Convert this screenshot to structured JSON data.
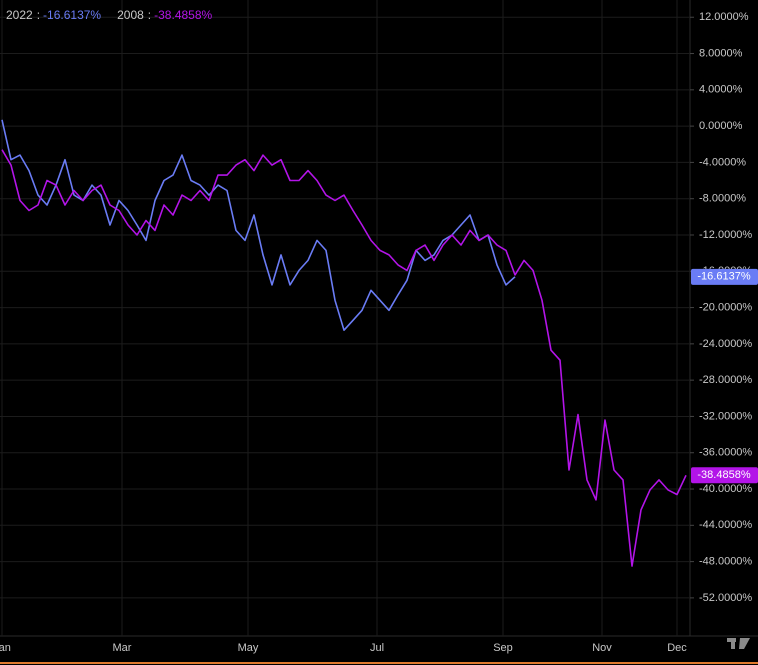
{
  "chart_data": {
    "type": "line",
    "legend_separator": ":",
    "x": [
      0,
      3,
      6,
      9,
      12,
      15,
      18,
      21,
      24,
      27,
      30,
      33,
      36,
      39,
      42,
      45,
      48,
      51,
      54,
      57,
      60,
      63,
      66,
      69,
      72,
      75,
      78,
      81,
      84,
      87,
      90,
      93,
      96,
      99,
      102,
      105,
      108,
      111,
      114,
      117,
      120,
      123,
      126,
      129,
      132,
      135,
      138,
      141,
      144,
      147,
      150,
      153,
      156,
      159,
      162,
      165,
      168,
      171,
      174,
      177,
      180,
      183,
      186,
      189,
      192,
      195,
      198,
      201,
      204,
      207,
      210,
      213,
      216,
      219,
      222,
      225,
      228
    ],
    "series": [
      {
        "name": "2022",
        "color": "#6a7cf5",
        "last_value_label": "-16.6137%",
        "values": [
          0.7,
          -3.7,
          -3.2,
          -4.9,
          -7.6,
          -8.7,
          -6.5,
          -3.7,
          -7.6,
          -8.2,
          -6.5,
          -7.6,
          -10.9,
          -8.2,
          -9.3,
          -10.9,
          -12.6,
          -8.2,
          -6.0,
          -5.4,
          -3.2,
          -6.0,
          -6.5,
          -7.6,
          -6.5,
          -7.1,
          -11.5,
          -12.6,
          -9.8,
          -14.2,
          -17.5,
          -14.2,
          -17.5,
          -15.9,
          -14.8,
          -12.6,
          -13.7,
          -19.2,
          -22.5,
          -21.4,
          -20.3,
          -18.1,
          -19.2,
          -20.3,
          -18.6,
          -17.0,
          -13.7,
          -14.8,
          -14.2,
          -12.6,
          -12.0,
          -10.9,
          -9.8,
          -12.6,
          -12.0,
          -15.3,
          -17.5,
          -16.6137,
          null,
          null,
          null,
          null,
          null,
          null,
          null,
          null,
          null,
          null,
          null,
          null,
          null,
          null,
          null,
          null,
          null,
          null,
          null
        ]
      },
      {
        "name": "2008",
        "color": "#b314e8",
        "last_value_label": "-38.4858%",
        "values": [
          -2.6,
          -4.3,
          -8.2,
          -9.3,
          -8.7,
          -6.0,
          -6.5,
          -8.7,
          -7.1,
          -8.2,
          -7.1,
          -6.5,
          -8.7,
          -9.3,
          -10.9,
          -12.0,
          -10.4,
          -11.5,
          -8.7,
          -9.8,
          -7.6,
          -8.2,
          -7.1,
          -8.2,
          -5.4,
          -5.4,
          -4.3,
          -3.7,
          -4.9,
          -3.2,
          -4.3,
          -3.7,
          -6.0,
          -6.0,
          -4.9,
          -6.0,
          -7.6,
          -8.2,
          -7.6,
          -9.3,
          -10.9,
          -12.6,
          -13.7,
          -14.2,
          -15.3,
          -15.9,
          -13.7,
          -13.1,
          -14.8,
          -13.1,
          -12.0,
          -13.1,
          -11.5,
          -12.6,
          -12.0,
          -13.1,
          -13.7,
          -16.4,
          -14.8,
          -15.9,
          -19.2,
          -24.7,
          -25.8,
          -37.9,
          -31.8,
          -39.0,
          -41.2,
          -32.4,
          -37.9,
          -39.0,
          -48.5,
          -42.3,
          -40.1,
          -39.0,
          -40.1,
          -40.6,
          -38.4858
        ]
      }
    ],
    "xlim": [
      0,
      229
    ],
    "xticks": [
      {
        "value": 0,
        "label": "Jan"
      },
      {
        "value": 40,
        "label": "Mar"
      },
      {
        "value": 82,
        "label": "May"
      },
      {
        "value": 125,
        "label": "Jul"
      },
      {
        "value": 167,
        "label": "Sep"
      },
      {
        "value": 200,
        "label": "Nov"
      },
      {
        "value": 225,
        "label": "Dec"
      }
    ],
    "ylim": [
      -56.2,
      13.9
    ],
    "yticks": [
      {
        "value": 12,
        "label": "12.0000%"
      },
      {
        "value": 8,
        "label": "8.0000%"
      },
      {
        "value": 4,
        "label": "4.0000%"
      },
      {
        "value": 0,
        "label": "0.0000%"
      },
      {
        "value": -4,
        "label": "-4.0000%"
      },
      {
        "value": -8,
        "label": "-8.0000%"
      },
      {
        "value": -12,
        "label": "-12.0000%"
      },
      {
        "value": -16,
        "label": "-16.0000%"
      },
      {
        "value": -20,
        "label": "-20.0000%"
      },
      {
        "value": -24,
        "label": "-24.0000%"
      },
      {
        "value": -28,
        "label": "-28.0000%"
      },
      {
        "value": -32,
        "label": "-32.0000%"
      },
      {
        "value": -36,
        "label": "-36.0000%"
      },
      {
        "value": -40,
        "label": "-40.0000%"
      },
      {
        "value": -44,
        "label": "-44.0000%"
      },
      {
        "value": -48,
        "label": "-48.0000%"
      },
      {
        "value": -52,
        "label": "-52.0000%"
      }
    ],
    "grid": true
  }
}
